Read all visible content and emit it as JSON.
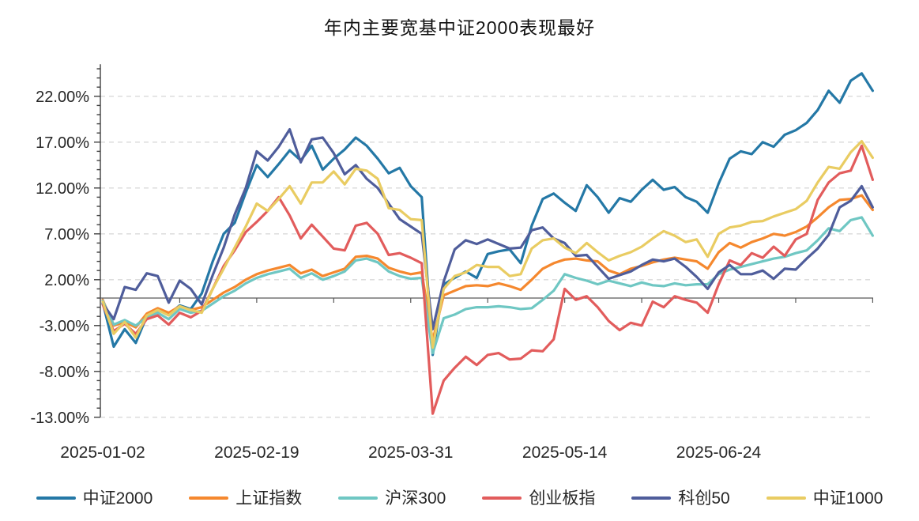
{
  "title": "年内主要宽基中证2000表现最好",
  "chart_data": {
    "type": "line",
    "title": "年内主要宽基中证2000表现最好",
    "xlabel": "",
    "ylabel": "",
    "y_unit": "%",
    "ylim": [
      -13,
      25.5
    ],
    "grid": "horizontal-dashed",
    "legend_position": "bottom",
    "axis_color": "#404040",
    "grid_color": "#d9d9d9",
    "zero_line_color": "#595959",
    "label_color": "#262626",
    "y_ticks": [
      {
        "label": "22.00%",
        "value": 22
      },
      {
        "label": "17.00%",
        "value": 17
      },
      {
        "label": "12.00%",
        "value": 12
      },
      {
        "label": "7.00%",
        "value": 7
      },
      {
        "label": "2.00%",
        "value": 2
      },
      {
        "label": "-3.00%",
        "value": -3
      },
      {
        "label": "-8.00%",
        "value": -8
      },
      {
        "label": "-13.00%",
        "value": -13
      }
    ],
    "x": [
      "2025-01-02",
      "2025-01-06",
      "2025-01-08",
      "2025-01-10",
      "2025-01-14",
      "2025-01-16",
      "2025-01-20",
      "2025-01-22",
      "2025-01-24",
      "2025-02-05",
      "2025-02-07",
      "2025-02-11",
      "2025-02-13",
      "2025-02-17",
      "2025-02-19",
      "2025-02-21",
      "2025-02-25",
      "2025-02-27",
      "2025-03-03",
      "2025-03-05",
      "2025-03-07",
      "2025-03-11",
      "2025-03-13",
      "2025-03-17",
      "2025-03-19",
      "2025-03-21",
      "2025-03-25",
      "2025-03-27",
      "2025-03-31",
      "2025-04-02",
      "2025-04-07",
      "2025-04-09",
      "2025-04-11",
      "2025-04-15",
      "2025-04-17",
      "2025-04-21",
      "2025-04-23",
      "2025-04-25",
      "2025-04-29",
      "2025-05-06",
      "2025-05-08",
      "2025-05-12",
      "2025-05-14",
      "2025-05-16",
      "2025-05-20",
      "2025-05-22",
      "2025-05-26",
      "2025-05-28",
      "2025-05-30",
      "2025-06-04",
      "2025-06-06",
      "2025-06-10",
      "2025-06-12",
      "2025-06-16",
      "2025-06-18",
      "2025-06-20",
      "2025-06-24",
      "2025-06-26",
      "2025-06-30",
      "2025-07-02",
      "2025-07-04",
      "2025-07-08",
      "2025-07-10",
      "2025-07-14",
      "2025-07-16",
      "2025-07-18",
      "2025-07-22",
      "2025-07-24",
      "2025-07-28",
      "2025-07-30",
      "2025-08-01"
    ],
    "x_tick_labels": [
      "2025-01-02",
      "2025-02-19",
      "2025-03-31",
      "2025-05-14",
      "2025-06-24"
    ],
    "x_tick_indices": [
      0,
      14,
      28,
      42,
      56
    ],
    "series": [
      {
        "name": "中证2000",
        "color": "#2478A6",
        "values": [
          -0.5,
          -5.3,
          -3.4,
          -4.9,
          -2.0,
          -1.3,
          -1.8,
          -0.8,
          -1.2,
          0.5,
          4.0,
          7.0,
          8.2,
          11.5,
          14.5,
          13.2,
          14.6,
          16.1,
          15.0,
          16.6,
          14.0,
          15.2,
          16.2,
          17.5,
          16.6,
          15.2,
          13.6,
          14.2,
          12.2,
          11.0,
          -6.2,
          1.5,
          2.2,
          2.9,
          2.2,
          4.8,
          5.1,
          5.3,
          3.8,
          7.9,
          10.8,
          11.4,
          10.4,
          9.5,
          12.3,
          11.0,
          9.3,
          10.9,
          10.5,
          11.8,
          12.9,
          11.8,
          12.1,
          11.0,
          10.5,
          9.3,
          12.5,
          15.2,
          16.0,
          15.7,
          17.0,
          16.5,
          17.8,
          18.3,
          19.1,
          20.5,
          22.6,
          21.3,
          23.7,
          24.5,
          22.6
        ]
      },
      {
        "name": "上证指数",
        "color": "#F5882E",
        "values": [
          -0.2,
          -3.0,
          -2.6,
          -3.2,
          -1.7,
          -1.1,
          -1.6,
          -0.9,
          -1.3,
          -1.0,
          -0.2,
          0.6,
          1.2,
          2.0,
          2.6,
          3.0,
          3.3,
          3.6,
          2.7,
          3.1,
          2.4,
          2.8,
          3.2,
          4.5,
          4.6,
          4.3,
          3.3,
          2.9,
          2.6,
          2.8,
          -4.6,
          0.3,
          0.8,
          1.3,
          1.4,
          1.3,
          1.6,
          1.3,
          0.9,
          2.0,
          3.2,
          3.8,
          4.2,
          4.3,
          4.1,
          4.0,
          3.0,
          2.6,
          3.2,
          3.5,
          3.9,
          4.2,
          4.4,
          4.2,
          4.0,
          3.2,
          5.0,
          6.0,
          5.5,
          6.1,
          6.5,
          7.0,
          6.8,
          7.2,
          7.8,
          8.8,
          9.9,
          10.7,
          10.8,
          11.2,
          9.6
        ]
      },
      {
        "name": "沪深300",
        "color": "#6FC7C3",
        "values": [
          -0.3,
          -2.9,
          -2.4,
          -3.0,
          -2.1,
          -1.6,
          -2.3,
          -1.2,
          -1.6,
          -1.4,
          -0.6,
          0.2,
          0.8,
          1.6,
          2.2,
          2.6,
          2.9,
          3.2,
          2.2,
          2.7,
          2.0,
          2.4,
          2.9,
          4.1,
          4.3,
          3.9,
          2.9,
          2.4,
          2.1,
          2.2,
          -6.0,
          -2.2,
          -1.8,
          -1.2,
          -1.0,
          -1.0,
          -0.9,
          -1.0,
          -1.2,
          -1.1,
          -0.2,
          0.8,
          2.6,
          2.2,
          1.9,
          1.5,
          1.9,
          1.6,
          1.3,
          1.7,
          1.4,
          1.3,
          1.6,
          1.4,
          1.5,
          1.5,
          2.6,
          3.1,
          3.4,
          3.7,
          4.0,
          4.3,
          4.5,
          4.9,
          5.2,
          6.3,
          7.6,
          7.3,
          8.5,
          8.8,
          6.8
        ]
      },
      {
        "name": "创业板指",
        "color": "#E25C5C",
        "values": [
          -0.7,
          -3.6,
          -2.8,
          -3.9,
          -2.3,
          -1.9,
          -2.9,
          -1.6,
          -2.1,
          -1.4,
          1.0,
          3.5,
          5.2,
          7.2,
          8.3,
          9.5,
          11.0,
          9.0,
          6.5,
          8.0,
          6.7,
          5.4,
          5.2,
          7.9,
          8.2,
          7.0,
          4.7,
          4.9,
          4.4,
          3.8,
          -12.6,
          -9.0,
          -7.6,
          -6.4,
          -7.3,
          -6.2,
          -6.0,
          -6.7,
          -6.6,
          -5.7,
          -5.8,
          -4.5,
          1.0,
          -0.2,
          0.2,
          -1.0,
          -2.5,
          -3.5,
          -2.7,
          -3.0,
          -0.4,
          -1.0,
          0.2,
          -0.2,
          -0.5,
          -1.6,
          1.5,
          4.1,
          3.6,
          4.9,
          4.4,
          5.6,
          4.6,
          6.4,
          7.0,
          10.7,
          12.6,
          13.6,
          13.9,
          16.6,
          12.9
        ]
      },
      {
        "name": "科创50",
        "color": "#4F5D9B",
        "values": [
          -0.6,
          -2.3,
          1.2,
          0.9,
          2.7,
          2.4,
          -0.5,
          1.9,
          1.0,
          -0.7,
          2.5,
          5.5,
          9.1,
          12.0,
          16.0,
          15.0,
          16.5,
          18.4,
          14.8,
          17.3,
          17.5,
          15.8,
          13.5,
          14.5,
          13.0,
          12.0,
          10.3,
          8.6,
          7.8,
          7.0,
          -3.4,
          1.8,
          5.3,
          6.3,
          5.9,
          6.4,
          5.9,
          5.4,
          5.5,
          7.4,
          7.7,
          6.5,
          6.0,
          4.6,
          4.7,
          3.4,
          2.1,
          2.5,
          2.9,
          3.6,
          4.2,
          4.0,
          4.3,
          3.4,
          2.3,
          1.0,
          2.8,
          3.6,
          2.6,
          2.6,
          3.0,
          2.1,
          3.2,
          3.1,
          4.3,
          5.4,
          6.9,
          9.9,
          10.6,
          12.2,
          9.9
        ]
      },
      {
        "name": "中证1000",
        "color": "#E9CC62",
        "values": [
          -0.4,
          -3.9,
          -2.6,
          -4.3,
          -1.9,
          -1.3,
          -1.9,
          -0.9,
          -1.3,
          -1.6,
          1.0,
          3.2,
          5.5,
          7.8,
          10.3,
          9.5,
          10.8,
          12.2,
          10.3,
          12.6,
          12.6,
          13.8,
          12.4,
          14.1,
          13.9,
          13.0,
          9.8,
          9.6,
          8.6,
          8.5,
          -5.4,
          1.0,
          2.4,
          2.8,
          3.6,
          3.4,
          3.4,
          2.4,
          2.6,
          5.4,
          6.3,
          6.5,
          5.5,
          4.9,
          6.0,
          5.0,
          4.1,
          4.6,
          5.0,
          5.6,
          6.5,
          7.3,
          6.8,
          6.1,
          6.4,
          4.5,
          7.0,
          7.7,
          7.9,
          8.3,
          8.4,
          8.9,
          9.3,
          9.7,
          10.6,
          12.6,
          14.3,
          14.1,
          15.9,
          17.1,
          15.3
        ]
      }
    ]
  }
}
